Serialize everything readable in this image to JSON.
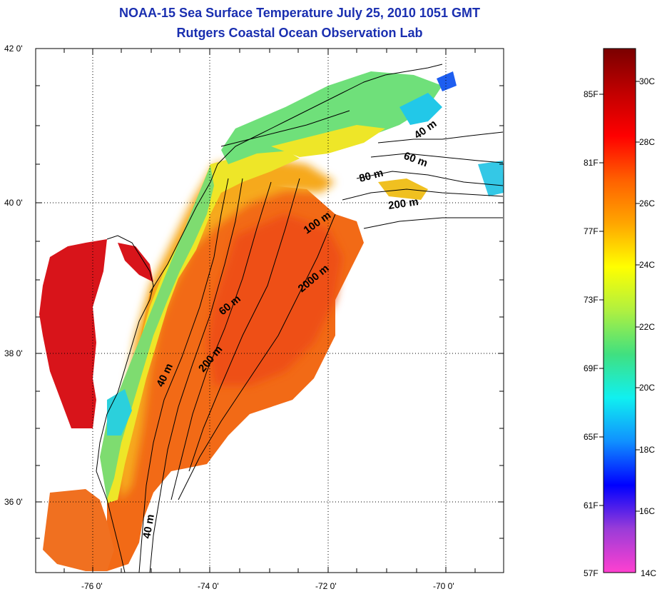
{
  "title": {
    "line1": "NOAA-15 Sea Surface Temperature July 25, 2010 1051 GMT",
    "line2": "Rutgers Coastal Ocean Observation Lab"
  },
  "map": {
    "lat_ticks": [
      "42 0'",
      "40 0'",
      "38 0'",
      "36 0'"
    ],
    "lon_ticks": [
      "-76 0'",
      "-74 0'",
      "-72 0'",
      "-70 0'"
    ],
    "contour_labels": [
      "40 m",
      "60 m",
      "80 m",
      "200 m",
      "100 m",
      "2000 m",
      "60 m",
      "200 m",
      "40 m",
      "40 m"
    ],
    "colors": {
      "land": "#ffffff",
      "coast_line": "#000000",
      "grid": "#000000",
      "sst_warm": "#f06a10",
      "sst_hot": "#e01010",
      "sst_mid": "#f7b21c",
      "sst_yellow": "#f2f21e",
      "sst_green": "#7de06a",
      "sst_cyan": "#28d8e0",
      "sst_blue": "#2060f0"
    }
  },
  "colorbar": {
    "f_labels": [
      "85F",
      "81F",
      "77F",
      "73F",
      "69F",
      "65F",
      "61F",
      "57F"
    ],
    "c_labels": [
      "30C",
      "28C",
      "26C",
      "24C",
      "22C",
      "20C",
      "18C",
      "16C",
      "14C"
    ],
    "stops": [
      "#ff40d0",
      "#9a3cd8",
      "#0000ff",
      "#1090ff",
      "#10f0f0",
      "#40e080",
      "#b0f040",
      "#ffff00",
      "#ffa500",
      "#ff6000",
      "#ff0000",
      "#c00000",
      "#7a0000"
    ]
  }
}
